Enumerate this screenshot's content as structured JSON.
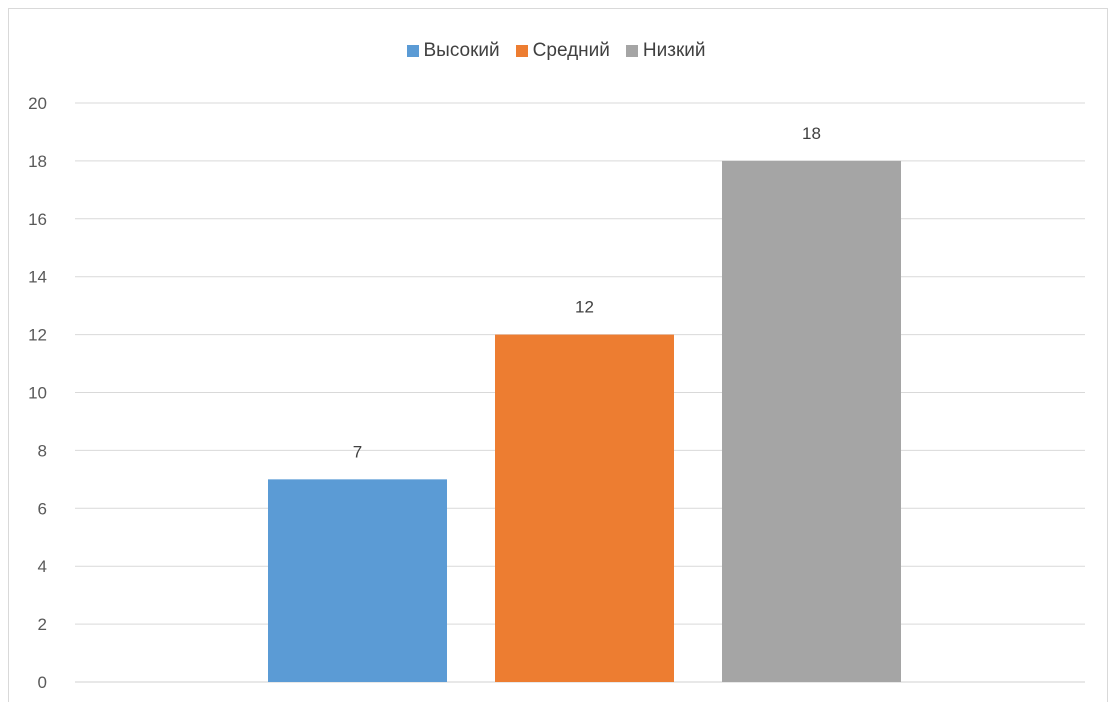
{
  "chart_data": {
    "type": "bar",
    "categories": [
      "Высокий",
      "Средний",
      "Низкий"
    ],
    "values": [
      7,
      12,
      18
    ],
    "colors": [
      "#5B9BD5",
      "#ED7D31",
      "#A5A5A5"
    ],
    "legend": [
      "Высокий",
      "Средний",
      "Низкий"
    ],
    "legend_position": "top",
    "ylim": [
      0,
      20
    ],
    "yticks": [
      0,
      2,
      4,
      6,
      8,
      10,
      12,
      14,
      16,
      18,
      20
    ],
    "grid": true,
    "data_labels": [
      "7",
      "12",
      "18"
    ],
    "title": "",
    "xlabel": "",
    "ylabel": ""
  }
}
